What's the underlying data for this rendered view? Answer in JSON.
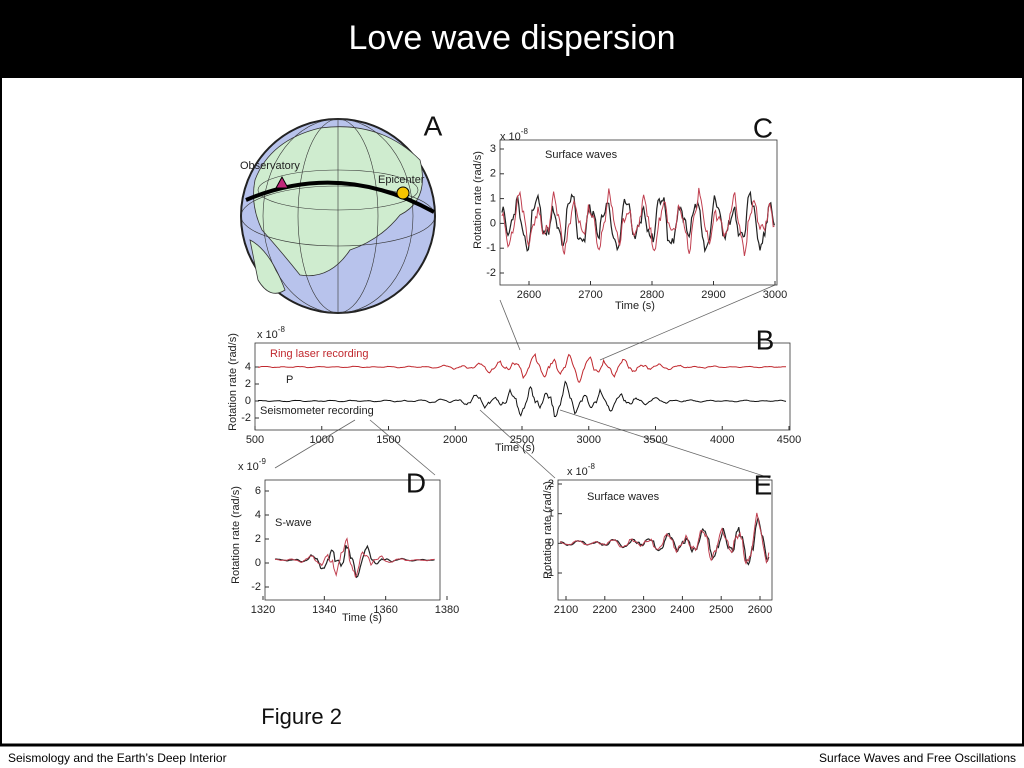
{
  "header": {
    "title": "Love wave dispersion"
  },
  "figure": {
    "panel_a": {
      "label": "A",
      "observatory": "Observatory",
      "epicenter": "Epicenter"
    },
    "panel_b": {
      "label": "B",
      "scale": "x 10",
      "exponent": "-8",
      "y_label": "Rotation rate (rad/s)",
      "x_label": "Time (s)",
      "yticks": [
        4,
        2,
        0,
        -2
      ],
      "xticks": [
        500,
        1000,
        1500,
        2000,
        2500,
        3000,
        3500,
        4000,
        4500
      ],
      "ring_laser": "Ring laser recording",
      "seismometer": "Seismometer recording",
      "p_marker": "P"
    },
    "panel_c": {
      "label": "C",
      "scale": "x 10",
      "exponent": "-8",
      "y_label": "Rotation rate (rad/s)",
      "x_label": "Time (s)",
      "yticks": [
        3,
        2,
        1,
        0,
        -1,
        -2
      ],
      "xticks": [
        2600,
        2700,
        2800,
        2900,
        3000
      ],
      "note": "Surface waves"
    },
    "panel_d": {
      "label": "D",
      "scale": "x 10",
      "exponent": "-9",
      "y_label": "Rotation rate (rad/s)",
      "x_label": "Time (s)",
      "yticks": [
        6,
        4,
        2,
        0,
        -2
      ],
      "xticks": [
        1320,
        1340,
        1360,
        1380
      ],
      "note": "S-wave"
    },
    "panel_e": {
      "label": "E",
      "scale": "x 10",
      "exponent": "-8",
      "y_label": "Rotation rate (rad/s)",
      "yticks": [
        2,
        1,
        0,
        -1
      ],
      "xticks": [
        2100,
        2200,
        2300,
        2400,
        2500,
        2600
      ],
      "note": "Surface waves"
    },
    "caption": "Figure 2"
  },
  "footer": {
    "left": "Seismology and the Earth’s Deep Interior",
    "right": "Surface Waves and Free Oscillations"
  }
}
